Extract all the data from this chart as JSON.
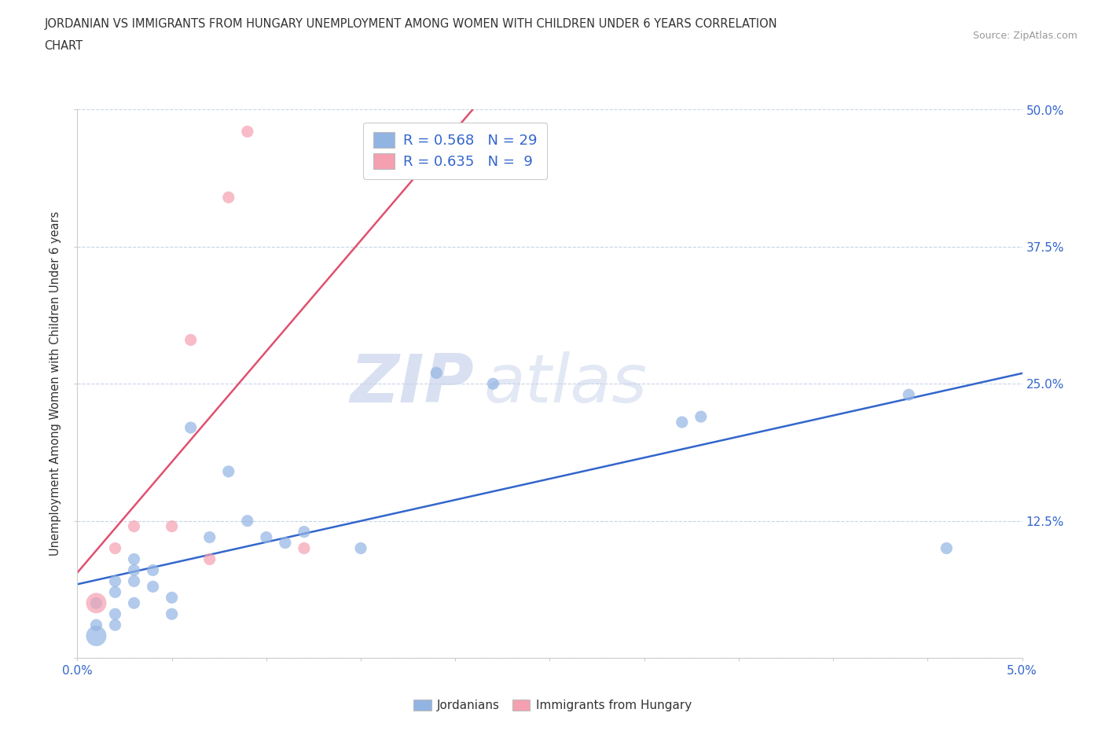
{
  "title_line1": "JORDANIAN VS IMMIGRANTS FROM HUNGARY UNEMPLOYMENT AMONG WOMEN WITH CHILDREN UNDER 6 YEARS CORRELATION",
  "title_line2": "CHART",
  "source": "Source: ZipAtlas.com",
  "ylabel": "Unemployment Among Women with Children Under 6 years",
  "legend_bottom": [
    "Jordanians",
    "Immigrants from Hungary"
  ],
  "r_jordan": 0.568,
  "n_jordan": 29,
  "r_hungary": 0.635,
  "n_hungary": 9,
  "xlim": [
    0.0,
    0.05
  ],
  "ylim": [
    0.0,
    0.5
  ],
  "xtick_positions": [
    0.0,
    0.005,
    0.01,
    0.015,
    0.02,
    0.025,
    0.03,
    0.035,
    0.04,
    0.045,
    0.05
  ],
  "xtick_labels": [
    "0.0%",
    "",
    "",
    "",
    "",
    "",
    "",
    "",
    "",
    "",
    "5.0%"
  ],
  "ytick_positions": [
    0.0,
    0.125,
    0.25,
    0.375,
    0.5
  ],
  "ytick_labels": [
    "",
    "12.5%",
    "25.0%",
    "37.5%",
    "50.0%"
  ],
  "jordan_color": "#92b4e3",
  "hungary_color": "#f4a0b0",
  "jordan_line_color": "#3366cc",
  "hungary_line_color": "#e05070",
  "background_color": "#ffffff",
  "grid_color": "#c8d4e8",
  "watermark_zip": "ZIP",
  "watermark_atlas": "atlas",
  "jordan_x": [
    0.001,
    0.001,
    0.001,
    0.002,
    0.002,
    0.002,
    0.002,
    0.003,
    0.003,
    0.003,
    0.003,
    0.004,
    0.004,
    0.005,
    0.005,
    0.006,
    0.007,
    0.008,
    0.009,
    0.01,
    0.011,
    0.012,
    0.015,
    0.019,
    0.022,
    0.032,
    0.033,
    0.044,
    0.046
  ],
  "jordan_y": [
    0.02,
    0.03,
    0.05,
    0.03,
    0.04,
    0.06,
    0.07,
    0.05,
    0.07,
    0.08,
    0.09,
    0.065,
    0.08,
    0.04,
    0.055,
    0.21,
    0.11,
    0.17,
    0.125,
    0.11,
    0.105,
    0.115,
    0.1,
    0.26,
    0.25,
    0.215,
    0.22,
    0.24,
    0.1
  ],
  "hungary_x": [
    0.001,
    0.002,
    0.003,
    0.005,
    0.006,
    0.007,
    0.008,
    0.009,
    0.012
  ],
  "hungary_y": [
    0.05,
    0.1,
    0.12,
    0.12,
    0.29,
    0.09,
    0.42,
    0.48,
    0.1
  ],
  "jordan_marker_size": 120,
  "hungary_marker_size": 120,
  "jordan_large_size": 350,
  "hungary_large_size": 350
}
